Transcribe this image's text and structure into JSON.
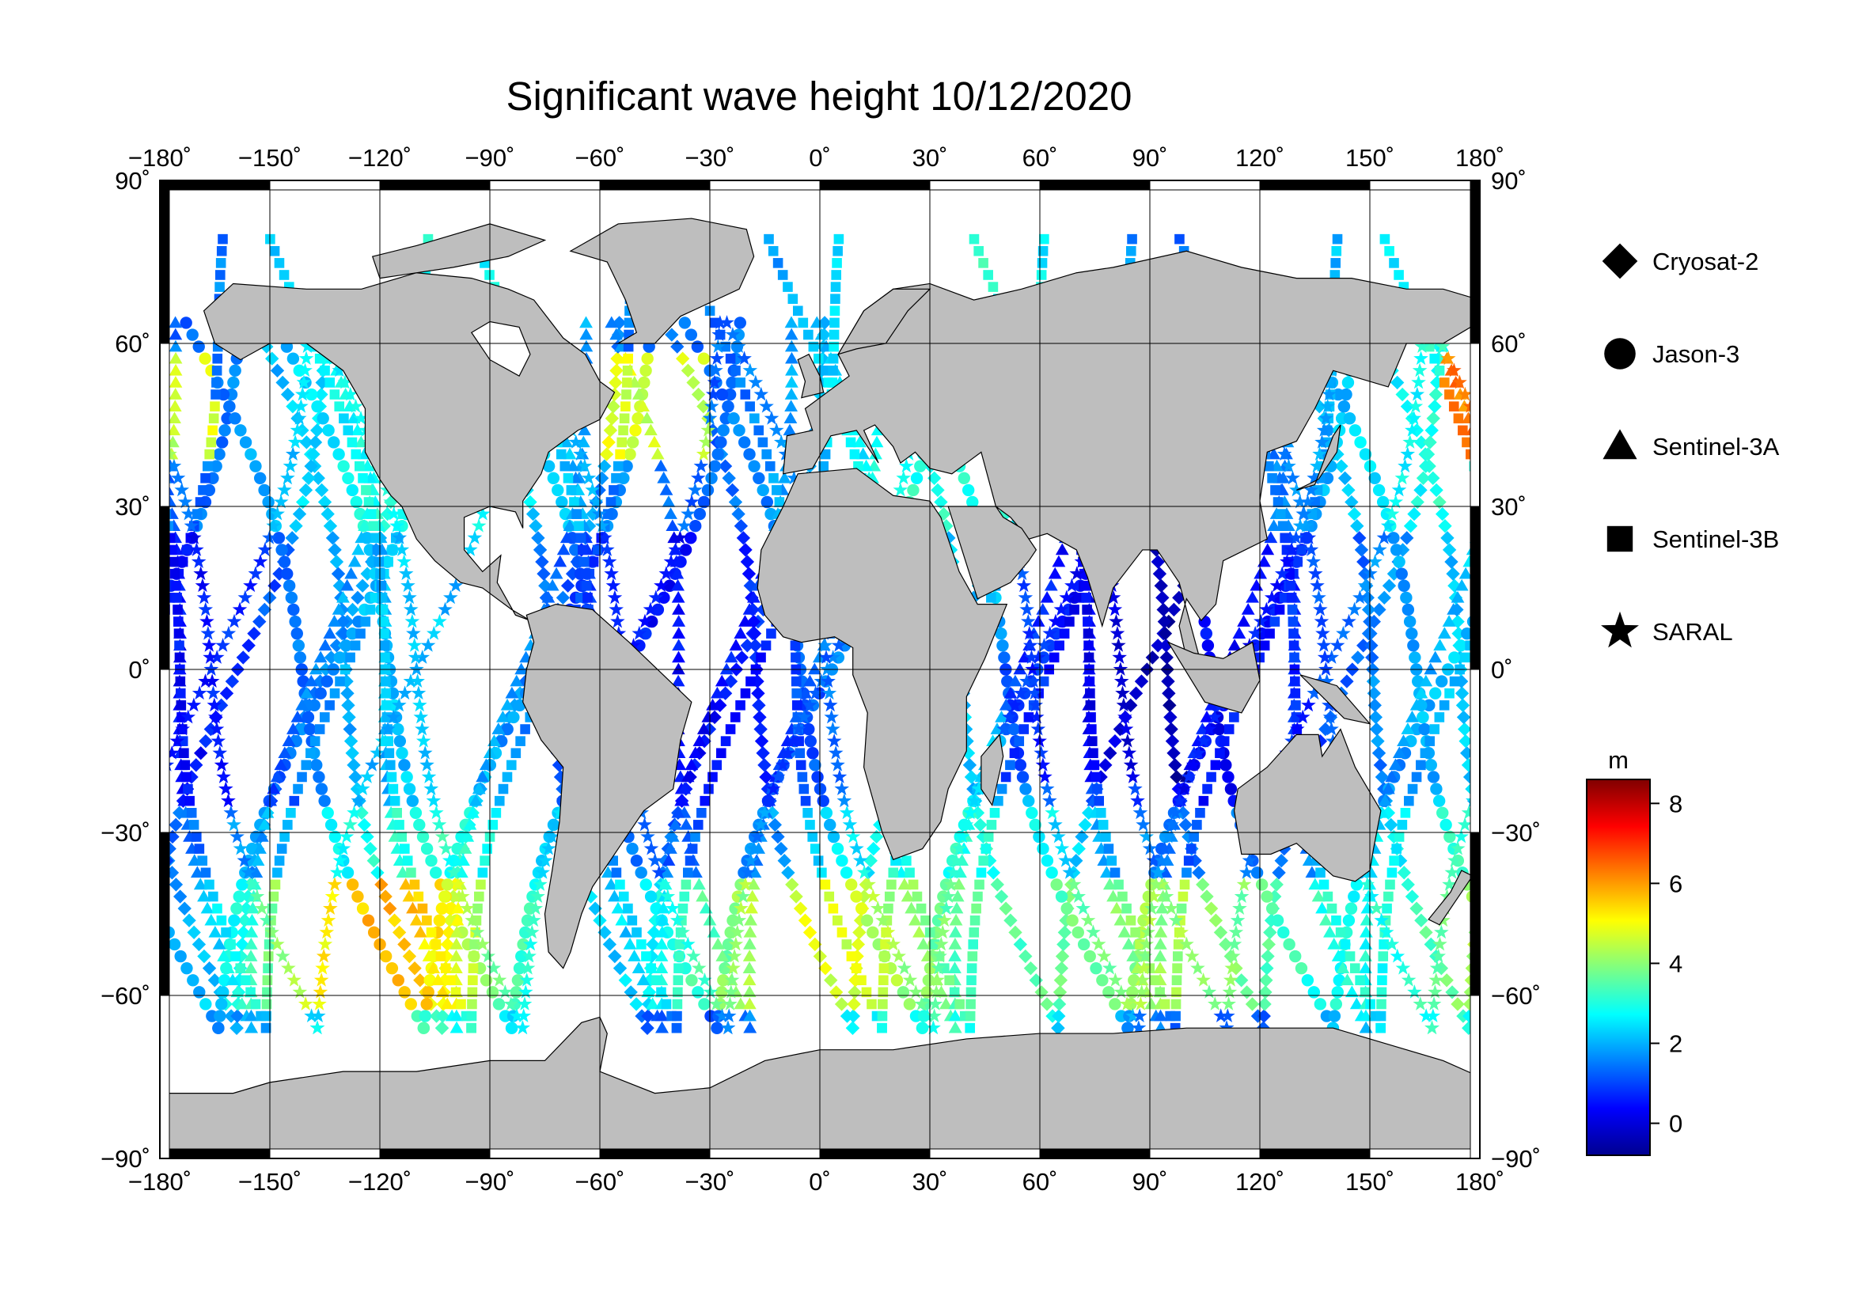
{
  "title": "Significant wave height 10/12/2020",
  "map": {
    "projection": "plate-carree",
    "lon_range": [
      -180,
      180
    ],
    "lat_range": [
      -90,
      90
    ],
    "land_color": "#bebebe",
    "ocean_color": "#ffffff",
    "grid": true,
    "lon_ticks": [
      {
        "value": -180,
        "label": "−180˚"
      },
      {
        "value": -150,
        "label": "−150˚"
      },
      {
        "value": -120,
        "label": "−120˚"
      },
      {
        "value": -90,
        "label": "−90˚"
      },
      {
        "value": -60,
        "label": "−60˚"
      },
      {
        "value": -30,
        "label": "−30˚"
      },
      {
        "value": 0,
        "label": "0˚"
      },
      {
        "value": 30,
        "label": "30˚"
      },
      {
        "value": 60,
        "label": "60˚"
      },
      {
        "value": 90,
        "label": "90˚"
      },
      {
        "value": 120,
        "label": "120˚"
      },
      {
        "value": 150,
        "label": "150˚"
      },
      {
        "value": 180,
        "label": "180˚"
      }
    ],
    "lat_ticks": [
      {
        "value": 90,
        "label": "90˚"
      },
      {
        "value": 60,
        "label": "60˚"
      },
      {
        "value": 30,
        "label": "30˚"
      },
      {
        "value": 0,
        "label": "0˚"
      },
      {
        "value": -30,
        "label": "−30˚"
      },
      {
        "value": -60,
        "label": "−60˚"
      },
      {
        "value": -90,
        "label": "−90˚"
      }
    ]
  },
  "legend": {
    "placement": "right",
    "items": [
      {
        "name": "Cryosat-2",
        "marker": "diamond"
      },
      {
        "name": "Jason-3",
        "marker": "circle"
      },
      {
        "name": "Sentinel-3A",
        "marker": "triangle"
      },
      {
        "name": "Sentinel-3B",
        "marker": "square"
      },
      {
        "name": "SARAL",
        "marker": "star"
      }
    ]
  },
  "colorbar": {
    "unit": "m",
    "range": [
      -0.8,
      8.6
    ],
    "ticks": [
      {
        "value": 0,
        "label": "0"
      },
      {
        "value": 2,
        "label": "2"
      },
      {
        "value": 4,
        "label": "4"
      },
      {
        "value": 6,
        "label": "6"
      },
      {
        "value": 8,
        "label": "8"
      }
    ],
    "colormap": [
      "#00008f",
      "#0000ff",
      "#0080ff",
      "#00ffff",
      "#80ff80",
      "#ffff00",
      "#ff8000",
      "#ff0000",
      "#800000"
    ]
  },
  "chart_data": {
    "type": "scatter",
    "series": [
      {
        "name": "Cryosat-2",
        "marker": "diamond",
        "start_lon": -160,
        "angle": 70
      },
      {
        "name": "Jason-3",
        "marker": "circle",
        "start_lon": -85,
        "angle": 65
      },
      {
        "name": "Sentinel-3A",
        "marker": "triangle",
        "start_lon": -20,
        "angle": 75
      },
      {
        "name": "Sentinel-3B",
        "marker": "square",
        "start_lon": 40,
        "angle": 72
      },
      {
        "name": "SARAL",
        "marker": "star",
        "start_lon": 110,
        "angle": 68
      }
    ]
  }
}
